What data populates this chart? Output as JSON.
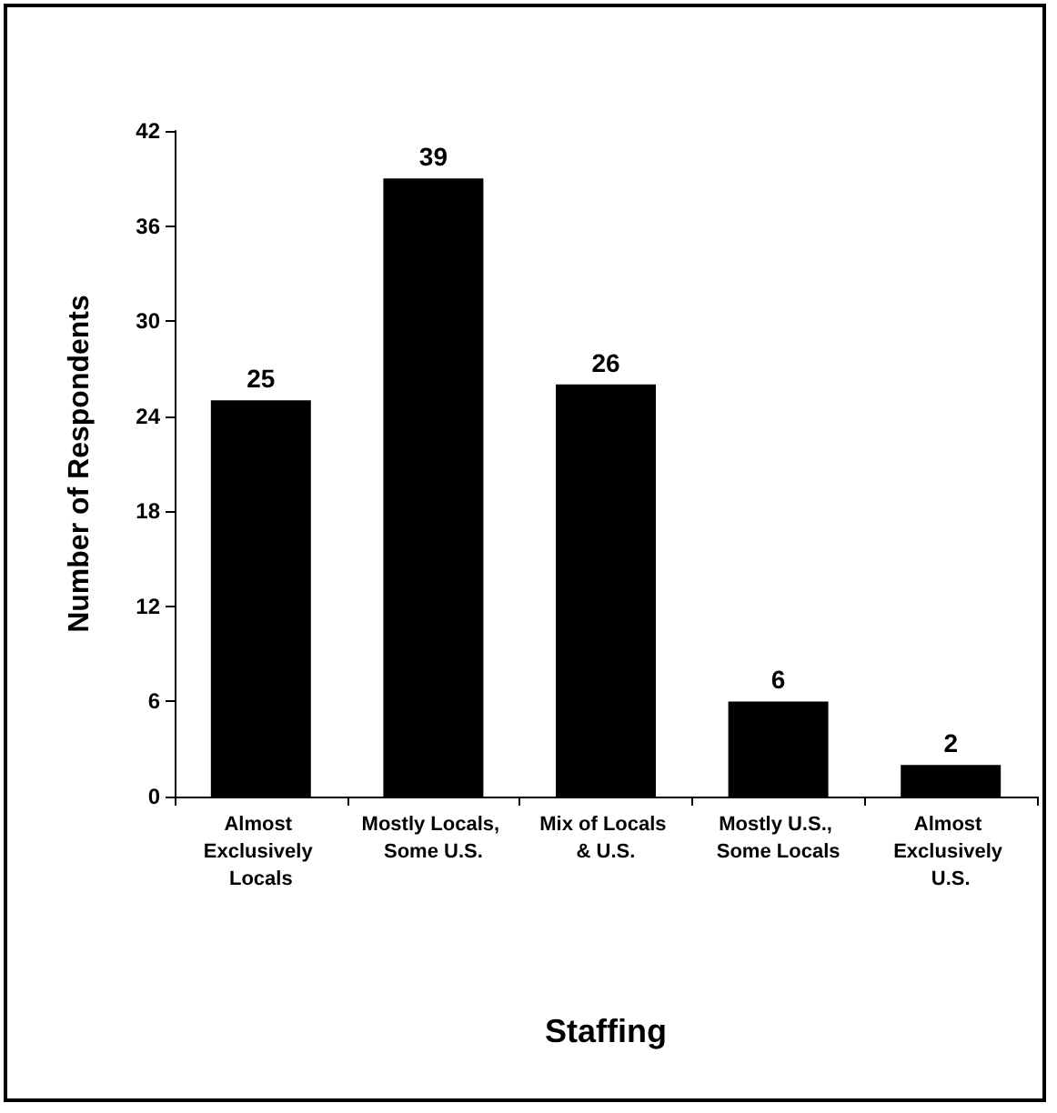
{
  "chart_data": {
    "type": "bar",
    "xlabel": "Staffing",
    "ylabel": "Number of Respondents",
    "categories": [
      "Almost Exclusively Locals",
      "Mostly Locals, Some U.S.",
      "Mix of Locals & U.S.",
      "Mostly U.S., Some Locals",
      "Almost Exclusively U.S."
    ],
    "values": [
      25,
      39,
      26,
      6,
      2
    ],
    "color": "#000000",
    "ylim": [
      0,
      42
    ],
    "yticks": [
      0,
      6,
      12,
      18,
      24,
      30,
      36,
      42
    ],
    "grid": false,
    "data_labels": true
  }
}
